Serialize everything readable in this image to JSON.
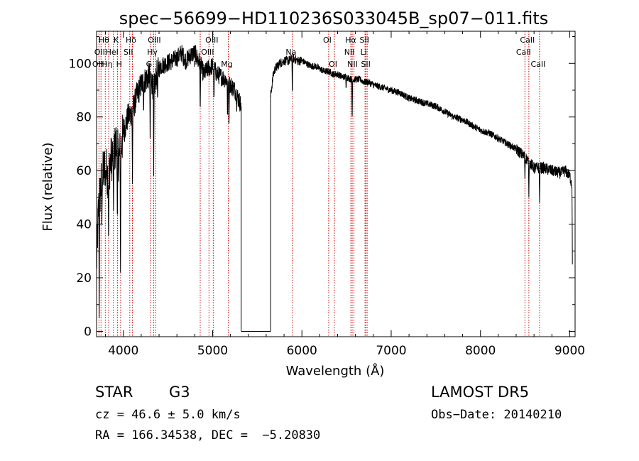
{
  "chart_data": {
    "type": "line",
    "title": "spec−56699−HD110236S033045B_sp07−011.fits",
    "xlabel": "Wavelength (Å)",
    "ylabel": "Flux (relative)",
    "xlim": [
      3700,
      9060
    ],
    "ylim": [
      -2,
      112
    ],
    "xticks": [
      4000,
      5000,
      6000,
      7000,
      8000,
      9000
    ],
    "yticks": [
      0,
      20,
      40,
      60,
      80,
      100
    ],
    "gap": [
      5320,
      5650
    ],
    "continuum": {
      "x": [
        3700,
        3720,
        3750,
        3780,
        3800,
        3830,
        3860,
        3890,
        3920,
        3950,
        3980,
        4000,
        4050,
        4100,
        4150,
        4200,
        4250,
        4300,
        4340,
        4380,
        4420,
        4480,
        4550,
        4600,
        4650,
        4700,
        4750,
        4800,
        4860,
        4900,
        4950,
        5000,
        5050,
        5100,
        5150,
        5200,
        5250,
        5300,
        5320,
        5650,
        5680,
        5700,
        5750,
        5800,
        5850,
        5900,
        5950,
        6000,
        6050,
        6100,
        6150,
        6200,
        6250,
        6300,
        6350,
        6400,
        6450,
        6500,
        6550,
        6600,
        6650,
        6700,
        6750,
        6800,
        6900,
        7000,
        7100,
        7200,
        7300,
        7400,
        7500,
        7600,
        7700,
        7800,
        7900,
        8000,
        8100,
        8200,
        8300,
        8400,
        8500,
        8550,
        8600,
        8650,
        8700,
        8800,
        8900,
        8950,
        9000,
        9030
      ],
      "y": [
        25,
        45,
        55,
        60,
        62,
        58,
        64,
        66,
        70,
        64,
        70,
        74,
        80,
        82,
        88,
        92,
        94,
        96,
        90,
        97,
        99,
        100,
        101,
        102,
        104,
        101,
        103,
        104,
        100,
        96,
        98,
        99,
        96,
        95,
        94,
        92,
        90,
        86,
        84,
        88,
        96,
        98,
        100,
        101,
        101,
        102,
        101,
        101,
        100,
        99,
        99,
        98,
        97,
        97,
        96,
        96,
        95,
        95,
        94,
        94,
        94,
        93,
        93,
        92,
        91,
        90,
        89,
        87,
        86,
        85,
        84,
        82,
        80,
        79,
        77,
        75,
        74,
        72,
        70,
        68,
        65,
        63,
        61,
        61,
        61,
        60,
        59,
        60,
        58,
        54
      ]
    },
    "absorption": [
      {
        "x": 3730,
        "y": 5
      },
      {
        "x": 3760,
        "y": 40
      },
      {
        "x": 3800,
        "y": 55
      },
      {
        "x": 3835,
        "y": 30
      },
      {
        "x": 3890,
        "y": 45
      },
      {
        "x": 3933,
        "y": 38
      },
      {
        "x": 3968,
        "y": 22
      },
      {
        "x": 4102,
        "y": 55
      },
      {
        "x": 4227,
        "y": 80
      },
      {
        "x": 4300,
        "y": 72
      },
      {
        "x": 4340,
        "y": 58
      },
      {
        "x": 4383,
        "y": 85
      },
      {
        "x": 4861,
        "y": 80
      },
      {
        "x": 5015,
        "y": 85
      },
      {
        "x": 5167,
        "y": 78
      },
      {
        "x": 5183,
        "y": 74
      },
      {
        "x": 5270,
        "y": 82
      },
      {
        "x": 5893,
        "y": 87
      },
      {
        "x": 6495,
        "y": 90
      },
      {
        "x": 6563,
        "y": 77
      },
      {
        "x": 8498,
        "y": 57
      },
      {
        "x": 8542,
        "y": 50
      },
      {
        "x": 8662,
        "y": 48
      },
      {
        "x": 9030,
        "y": 25
      }
    ],
    "lines": [
      {
        "x": 3727,
        "label": "OII",
        "row": 2,
        "ox": 0
      },
      {
        "x": 3750,
        "label": "OII",
        "row": 1,
        "ox": 0
      },
      {
        "x": 3798,
        "label": "Hθ",
        "row": 0,
        "ox": 0
      },
      {
        "x": 3835,
        "label": "Hη",
        "row": 2,
        "ox": 0
      },
      {
        "x": 3889,
        "label": "HeI",
        "row": 1,
        "ox": 0
      },
      {
        "x": 3934,
        "label": "K",
        "row": 0,
        "ox": 0
      },
      {
        "x": 3969,
        "label": "H",
        "row": 2,
        "ox": 0
      },
      {
        "x": 4072,
        "label": "SII",
        "row": 1,
        "ox": 0
      },
      {
        "x": 4102,
        "label": "Hδ",
        "row": 0,
        "ox": 0
      },
      {
        "x": 4304,
        "label": "G",
        "row": 2,
        "ox": 0
      },
      {
        "x": 4340,
        "label": "Hγ",
        "row": 1,
        "ox": 0
      },
      {
        "x": 4363,
        "label": "OIII",
        "row": 0,
        "ox": 0
      },
      {
        "x": 4861,
        "label": "Hβ",
        "row": 2,
        "ox": 0
      },
      {
        "x": 4959,
        "label": "OIII",
        "row": 1,
        "ox": 0
      },
      {
        "x": 5007,
        "label": "OIII",
        "row": 0,
        "ox": 0
      },
      {
        "x": 5175,
        "label": "Mg",
        "row": 2,
        "ox": 0
      },
      {
        "x": 5894,
        "label": "Na",
        "row": 1,
        "ox": 0
      },
      {
        "x": 6300,
        "label": "OI",
        "row": 0,
        "ox": 0
      },
      {
        "x": 6364,
        "label": "OI",
        "row": 2,
        "ox": 0
      },
      {
        "x": 6548,
        "label": "NII",
        "row": 1,
        "ox": 0
      },
      {
        "x": 6563,
        "label": "Hα",
        "row": 0,
        "ox": 0
      },
      {
        "x": 6583,
        "label": "NII",
        "row": 2,
        "ox": 0
      },
      {
        "x": 6707,
        "label": "Li",
        "row": 1,
        "ox": 0
      },
      {
        "x": 6716,
        "label": "SII",
        "row": 0,
        "ox": 0
      },
      {
        "x": 6731,
        "label": "SII",
        "row": 2,
        "ox": 0
      },
      {
        "x": 8498,
        "label": "CaII",
        "row": 1,
        "ox": 0
      },
      {
        "x": 8542,
        "label": "CaII",
        "row": 0,
        "ox": 0
      },
      {
        "x": 8662,
        "label": "CaII",
        "row": 2,
        "ox": 0
      }
    ],
    "line_color": "#000000",
    "marker_color": "#cc0000"
  },
  "info": {
    "object_class": "STAR",
    "subclass": "G3",
    "redshift": "cz = 46.6 ± 5.0 km/s",
    "coords": "RA = 166.34538, DEC =  −5.20830",
    "survey": "LAMOST DR5",
    "obs_date": "Obs−Date: 20140210"
  }
}
